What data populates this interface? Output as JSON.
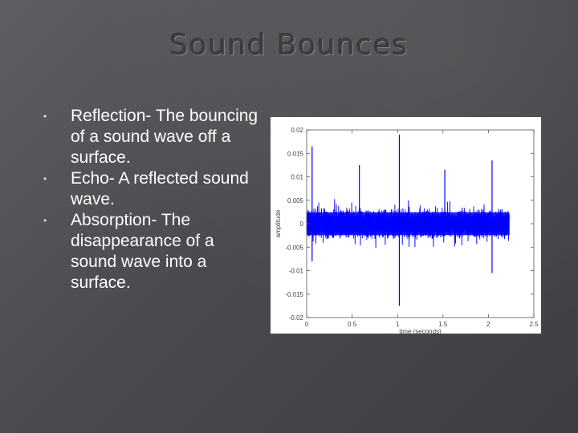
{
  "slide": {
    "title": "Sound Bounces",
    "bullets": [
      "Reflection- The bouncing of a sound wave off a surface.",
      "Echo- A reflected sound wave.",
      "Absorption- The disappearance of a sound wave into a surface."
    ],
    "bullet_glyph": "•"
  },
  "colors": {
    "background": "#4e4e52",
    "title": "#3d3d40",
    "text": "#ffffff",
    "waveform": "#0000ff"
  },
  "chart_data": {
    "type": "line",
    "title": "",
    "xlabel": "time (seconds)",
    "ylabel": "amplitude",
    "xlim": [
      0,
      2.5
    ],
    "ylim": [
      -0.02,
      0.02
    ],
    "xticks": [
      0,
      0.5,
      1,
      1.5,
      2,
      2.5
    ],
    "xtick_labels": [
      "0",
      "0.5",
      "1",
      "1.5",
      "2",
      "2.5"
    ],
    "yticks": [
      0.02,
      0.015,
      0.01,
      0.005,
      0,
      -0.005,
      -0.01,
      -0.015,
      -0.02
    ],
    "ytick_labels": [
      "0.02",
      "0.015",
      "0.01",
      "0.005",
      "0",
      "-0.005",
      "-0.01",
      "-0.015",
      "-0.02"
    ],
    "grid": false,
    "series": [
      {
        "values_description": "",
        "x_range": [
          0,
          2.23
        ],
        "typical_amplitude": 0.0035,
        "peak_amplitude": 0.0055,
        "spikes": [
          {
            "x": 0.06,
            "y": 0.0165
          },
          {
            "x": 0.06,
            "y": -0.008
          },
          {
            "x": 0.58,
            "y": 0.0125
          },
          {
            "x": 1.02,
            "y": 0.019
          },
          {
            "x": 1.02,
            "y": -0.0175
          },
          {
            "x": 1.52,
            "y": 0.0115
          },
          {
            "x": 2.04,
            "y": 0.0135
          },
          {
            "x": 2.04,
            "y": -0.0105
          }
        ]
      }
    ]
  }
}
